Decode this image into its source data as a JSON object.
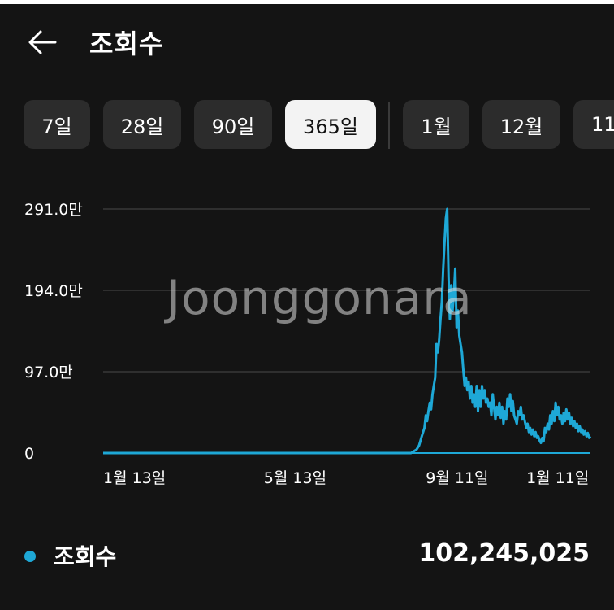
{
  "header": {
    "title": "조회수",
    "back_icon": "arrow-left-icon"
  },
  "filters": [
    {
      "label": "7일",
      "active": false
    },
    {
      "label": "28일",
      "active": false
    },
    {
      "label": "90일",
      "active": false
    },
    {
      "label": "365일",
      "active": true
    },
    {
      "label": "1월",
      "active": false
    },
    {
      "label": "12월",
      "active": false
    },
    {
      "label": "11",
      "active": false
    }
  ],
  "chart_data": {
    "type": "line",
    "series_color": "#1ea8d6",
    "grid": true,
    "ylim": [
      0,
      2910000
    ],
    "y_ticks": [
      {
        "value": 2910000,
        "label": "291.0만"
      },
      {
        "value": 1940000,
        "label": "194.0만"
      },
      {
        "value": 970000,
        "label": "97.0만"
      },
      {
        "value": 0,
        "label": "0"
      }
    ],
    "x_ticks": [
      "1월 13일",
      "5월 13일",
      "9월 11일",
      "1월 11일"
    ],
    "x_tick_days": [
      0,
      120,
      241,
      363
    ],
    "x_range_days": [
      0,
      364
    ],
    "points": [
      [
        0,
        0
      ],
      [
        230,
        0
      ],
      [
        232,
        20000
      ],
      [
        234,
        40000
      ],
      [
        236,
        90000
      ],
      [
        238,
        200000
      ],
      [
        240,
        300000
      ],
      [
        241,
        450000
      ],
      [
        242,
        380000
      ],
      [
        243,
        500000
      ],
      [
        244,
        600000
      ],
      [
        245,
        520000
      ],
      [
        246,
        700000
      ],
      [
        247,
        800000
      ],
      [
        248,
        900000
      ],
      [
        249,
        1300000
      ],
      [
        250,
        1200000
      ],
      [
        251,
        1350000
      ],
      [
        252,
        1600000
      ],
      [
        253,
        1800000
      ],
      [
        254,
        2200000
      ],
      [
        255,
        2500000
      ],
      [
        256,
        2800000
      ],
      [
        257,
        2910000
      ],
      [
        258,
        2100000
      ],
      [
        259,
        1600000
      ],
      [
        260,
        2000000
      ],
      [
        261,
        1700000
      ],
      [
        262,
        1900000
      ],
      [
        263,
        2200000
      ],
      [
        264,
        1500000
      ],
      [
        265,
        1700000
      ],
      [
        266,
        1400000
      ],
      [
        267,
        1300000
      ],
      [
        268,
        1200000
      ],
      [
        269,
        1000000
      ],
      [
        270,
        800000
      ],
      [
        271,
        900000
      ],
      [
        272,
        750000
      ],
      [
        273,
        850000
      ],
      [
        274,
        650000
      ],
      [
        275,
        800000
      ],
      [
        276,
        600000
      ],
      [
        277,
        700000
      ],
      [
        278,
        550000
      ],
      [
        279,
        800000
      ],
      [
        280,
        500000
      ],
      [
        281,
        750000
      ],
      [
        282,
        550000
      ],
      [
        283,
        800000
      ],
      [
        284,
        650000
      ],
      [
        285,
        750000
      ],
      [
        286,
        600000
      ],
      [
        287,
        650000
      ],
      [
        288,
        550000
      ],
      [
        289,
        600000
      ],
      [
        290,
        450000
      ],
      [
        291,
        700000
      ],
      [
        292,
        550000
      ],
      [
        293,
        400000
      ],
      [
        294,
        550000
      ],
      [
        295,
        450000
      ],
      [
        296,
        600000
      ],
      [
        297,
        420000
      ],
      [
        298,
        550000
      ],
      [
        299,
        350000
      ],
      [
        300,
        500000
      ],
      [
        301,
        400000
      ],
      [
        302,
        650000
      ],
      [
        303,
        550000
      ],
      [
        304,
        700000
      ],
      [
        305,
        500000
      ],
      [
        306,
        620000
      ],
      [
        307,
        450000
      ],
      [
        308,
        400000
      ],
      [
        309,
        350000
      ],
      [
        310,
        500000
      ],
      [
        311,
        450000
      ],
      [
        312,
        550000
      ],
      [
        313,
        400000
      ],
      [
        314,
        450000
      ],
      [
        315,
        380000
      ],
      [
        316,
        300000
      ],
      [
        317,
        350000
      ],
      [
        318,
        250000
      ],
      [
        319,
        300000
      ],
      [
        320,
        220000
      ],
      [
        321,
        280000
      ],
      [
        322,
        200000
      ],
      [
        323,
        250000
      ],
      [
        324,
        180000
      ],
      [
        325,
        200000
      ],
      [
        326,
        150000
      ],
      [
        327,
        120000
      ],
      [
        328,
        180000
      ],
      [
        329,
        140000
      ],
      [
        330,
        300000
      ],
      [
        331,
        250000
      ],
      [
        332,
        350000
      ],
      [
        333,
        280000
      ],
      [
        334,
        450000
      ],
      [
        335,
        350000
      ],
      [
        336,
        500000
      ],
      [
        337,
        380000
      ],
      [
        338,
        600000
      ],
      [
        339,
        450000
      ],
      [
        340,
        550000
      ],
      [
        341,
        400000
      ],
      [
        342,
        450000
      ],
      [
        343,
        350000
      ],
      [
        344,
        480000
      ],
      [
        345,
        380000
      ],
      [
        346,
        520000
      ],
      [
        347,
        400000
      ],
      [
        348,
        480000
      ],
      [
        349,
        350000
      ],
      [
        350,
        420000
      ],
      [
        351,
        320000
      ],
      [
        352,
        380000
      ],
      [
        353,
        300000
      ],
      [
        354,
        350000
      ],
      [
        355,
        260000
      ],
      [
        356,
        320000
      ],
      [
        357,
        250000
      ],
      [
        358,
        280000
      ],
      [
        359,
        220000
      ],
      [
        360,
        260000
      ],
      [
        361,
        200000
      ],
      [
        362,
        240000
      ],
      [
        363,
        180000
      ],
      [
        364,
        200000
      ]
    ]
  },
  "legend": {
    "label": "조회수",
    "value": "102,245,025",
    "color": "#1ea8d6"
  },
  "watermark": {
    "text": "Joonggonara"
  }
}
